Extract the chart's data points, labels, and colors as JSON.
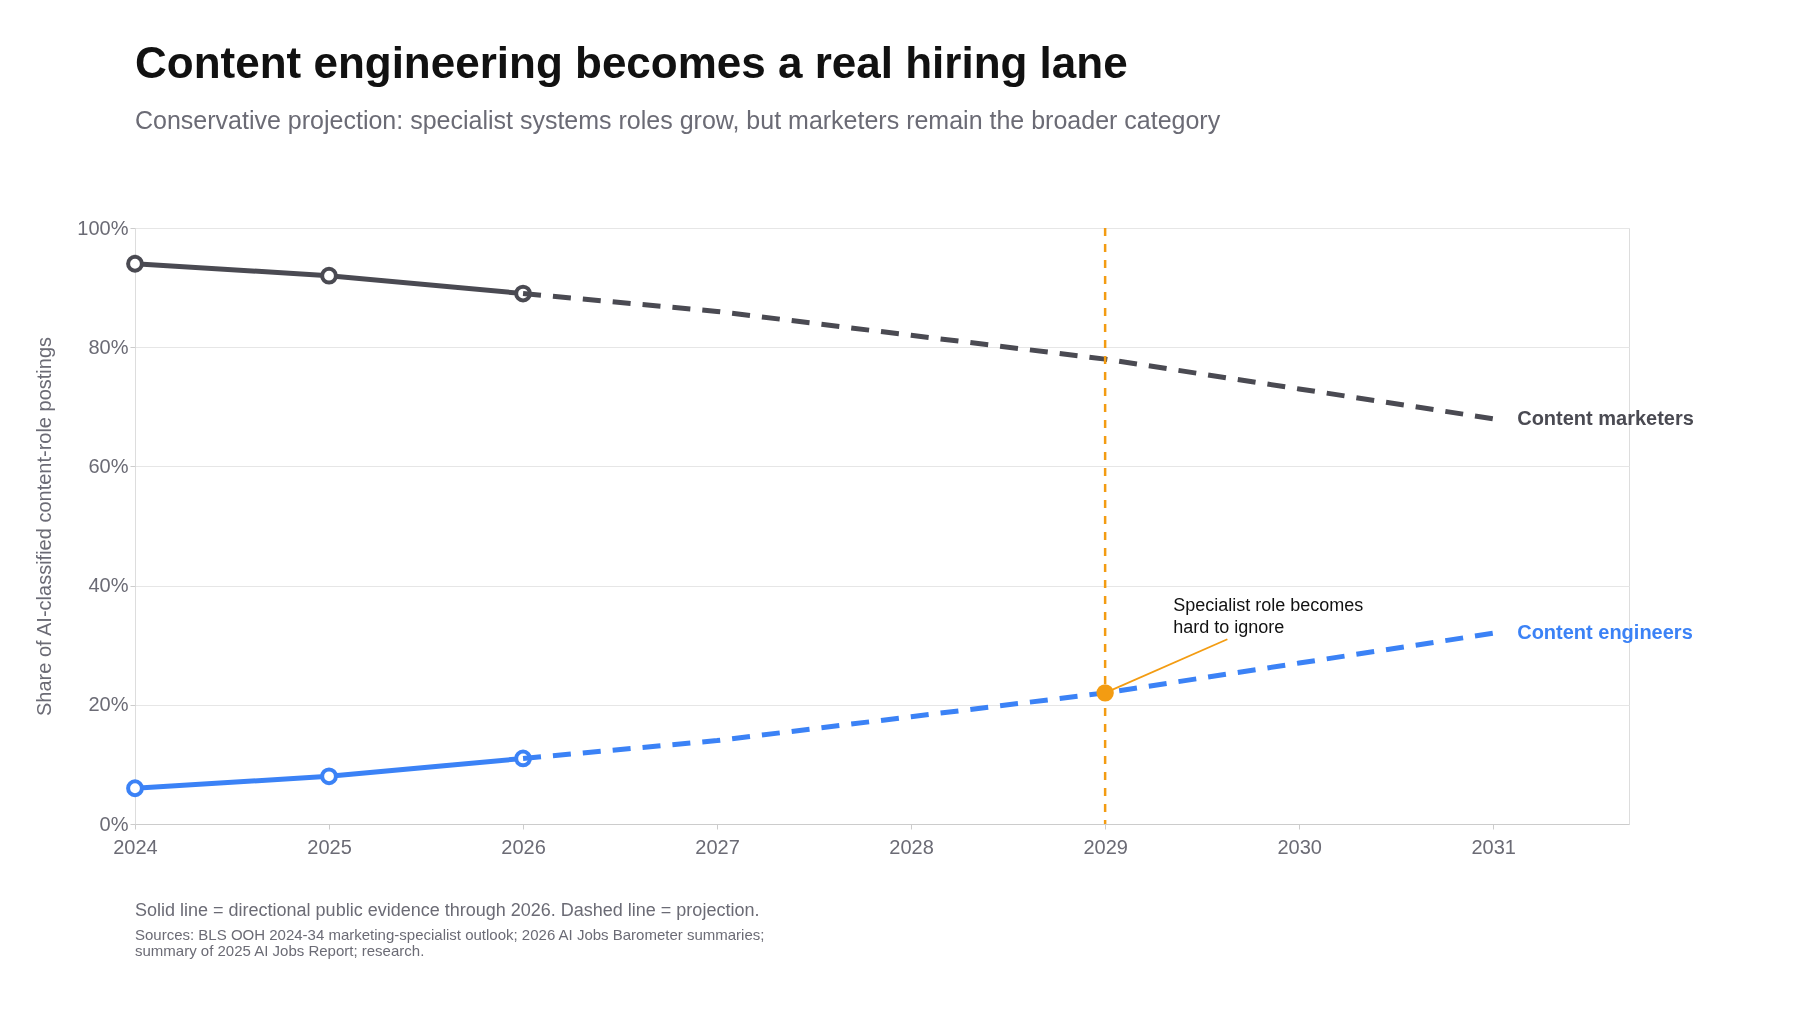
{
  "chart_data": {
    "type": "line",
    "title": "Content engineering becomes a real hiring lane",
    "subtitle": "Conservative projection: specialist systems roles grow, but marketers remain the broader category",
    "ylabel": "Share of AI-classified content-role postings",
    "series": [
      {
        "color": "#4a4a52",
        "x": [
          2024,
          2025,
          2026
        ],
        "values": [
          94,
          92,
          89
        ],
        "marker": "circle",
        "line_style": "solid"
      },
      {
        "name": "Content marketers",
        "color": "#4a4a52",
        "x": [
          2026,
          2027,
          2028,
          2029,
          2030,
          2031
        ],
        "values": [
          89,
          86,
          82,
          78,
          73,
          68
        ],
        "marker": "none",
        "line_style": "dashed"
      },
      {
        "color": "#3b82f6",
        "x": [
          2024,
          2025,
          2026
        ],
        "values": [
          6,
          8,
          11
        ],
        "marker": "circle",
        "line_style": "solid"
      },
      {
        "name": "Content engineers",
        "color": "#3b82f6",
        "x": [
          2026,
          2027,
          2028,
          2029,
          2030,
          2031
        ],
        "values": [
          11,
          14,
          18,
          22,
          27,
          32
        ],
        "marker": "none",
        "line_style": "dashed"
      }
    ],
    "xlim": [
      2024,
      2031.7
    ],
    "xticks": [
      2024,
      2025,
      2026,
      2027,
      2028,
      2029,
      2030,
      2031
    ],
    "ylim": [
      0,
      100
    ],
    "yticks": [
      {
        "value": 0,
        "label": "0%"
      },
      {
        "value": 20,
        "label": "20%"
      },
      {
        "value": 40,
        "label": "40%"
      },
      {
        "value": 60,
        "label": "60%"
      },
      {
        "value": 80,
        "label": "80%"
      },
      {
        "value": 100,
        "label": "100%"
      }
    ],
    "grid": "y",
    "ref_lines": [
      {
        "axis": "x",
        "value": 2029,
        "color": "#f39c12",
        "line_style": "dashed"
      }
    ],
    "annotations": [
      {
        "text": "Specialist role becomes\nhard to ignore",
        "x": 2029,
        "y": 22
      },
      "Solid line = directional public evidence through 2026. Dashed line = projection.",
      "Sources: BLS OOH 2024-34 marketing-specialist outlook; 2026 AI Jobs Barometer summaries;\nsummary of 2025 AI Jobs Report; research."
    ]
  }
}
